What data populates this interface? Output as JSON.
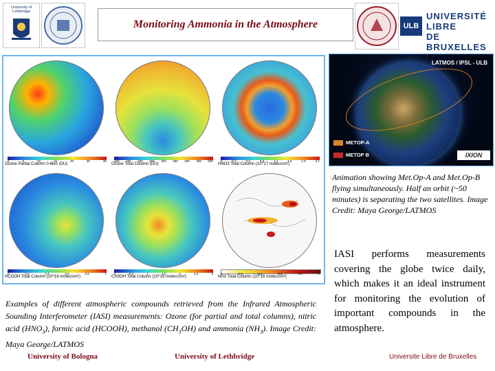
{
  "header": {
    "title": "Monitoring Ammonia in the Atmosphere",
    "uleth_logo_text": "University of Lethbridge",
    "ulb_logo_lines": [
      "UNIVERSITÉ",
      "LIBRE",
      "DE BRUXELLES"
    ],
    "ulb_badge": "ULB"
  },
  "maps": {
    "panels": [
      {
        "label": "Ozone Partial Column 0-6km (DU)",
        "ticks": [
          "0",
          "5",
          "10",
          "15",
          "20",
          "25",
          "30"
        ]
      },
      {
        "label": "Ozone Total Column (DU)",
        "ticks": [
          "100",
          "150",
          "200",
          "250",
          "300",
          "350",
          "400",
          "450",
          "500"
        ]
      },
      {
        "label": "HNO3 Total Column (10^17 molec/cm²)",
        "ticks": [
          "0",
          "0.3",
          "0.6",
          "0.9",
          "1.2",
          "1.5",
          "1.8",
          "2.1"
        ]
      },
      {
        "label": "HCOOH Total Column (10^16 molec/cm²)",
        "ticks": [
          "0",
          "0.2",
          "0.4",
          "0.6",
          "0.8",
          "1"
        ]
      },
      {
        "label": "CH3OH Total Column (10^16 molec/cm²)",
        "ticks": [
          "0",
          "0.5",
          "1",
          "1.5",
          "2",
          "2.5",
          "3"
        ]
      },
      {
        "label": "NH3 Total Column (10^16 molec/cm²)",
        "ticks": [
          "0",
          "0.2",
          "0.4",
          "0.6",
          "0.8",
          "1"
        ]
      }
    ]
  },
  "video": {
    "credit": "LATMOS / IPSL - ULB",
    "legend": [
      {
        "label": "METOP-A",
        "color": "#d9822b"
      },
      {
        "label": "METOP B",
        "color": "#c62828"
      }
    ],
    "watermark": "IXION"
  },
  "text": {
    "animation_caption": "Animation showing Met.Op-A and Met.Op-B flying simultaneously. Half an orbit (~50 minutes) is separating the two satellites. Image Credit: Maya George/LATMOS",
    "iasi_body": "IASI performs measurements covering the globe twice daily, which makes it an ideal instrument for monitoring the evolution of important compounds in the atmosphere.",
    "examples_caption_a": "Examples of different atmospheric compounds retrieved from the Infrared Atmospheric Sounding Interferometer (IASI) measurements: Ozone (for partial and total columns), nitric acid (HNO",
    "examples_caption_sub1": "3",
    "examples_caption_b": "), formic acid (HCOOH), methanol (CH",
    "examples_caption_sub2": "3",
    "examples_caption_c": "OH) and ammonia (NH",
    "examples_caption_sub3": "3",
    "examples_caption_d": "). Image Credit: Maya George/LATMOS"
  },
  "footer": {
    "bologna": "University of Bologna",
    "lethbridge": "University of Lethbridge",
    "ulb": "Universite Libre de Bruxelles"
  }
}
